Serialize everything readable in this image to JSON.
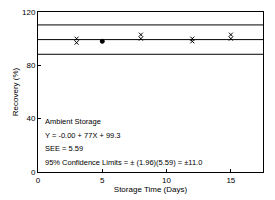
{
  "chart_data": {
    "type": "scatter",
    "xlabel": "Storage Time (Days)",
    "ylabel": "Recovery (%)",
    "xlim": [
      0,
      17.5
    ],
    "ylim": [
      0,
      120
    ],
    "xticks": [
      0,
      5,
      10,
      15
    ],
    "yticks": [
      0,
      40,
      80,
      120
    ],
    "grid": false,
    "annotations": [
      "Ambient Storage",
      "Y = -0.00 + 77X + 99.3",
      "SEE = 5.59",
      "95% Confidence Limits = ± (1.96)(5.59) = ±11.0"
    ],
    "series": [
      {
        "type": "scatter",
        "marker": "x",
        "color": "#000000",
        "x": [
          3,
          3,
          8,
          8,
          12,
          12,
          15,
          15
        ],
        "values": [
          97,
          100,
          100,
          103,
          98,
          100,
          100,
          103
        ]
      },
      {
        "type": "scatter",
        "marker": "circle",
        "color": "#000000",
        "x": [
          5
        ],
        "values": [
          98
        ]
      },
      {
        "type": "line",
        "line_style": "solid",
        "color": "#000000",
        "x": [
          0,
          17.5
        ],
        "values": [
          99.3,
          99.3
        ]
      },
      {
        "type": "line",
        "line_style": "solid",
        "color": "#000000",
        "x": [
          0,
          17.5
        ],
        "values": [
          110.3,
          110.3
        ]
      },
      {
        "type": "line",
        "line_style": "solid",
        "color": "#000000",
        "x": [
          0,
          17.5
        ],
        "values": [
          88.3,
          88.3
        ]
      }
    ]
  }
}
